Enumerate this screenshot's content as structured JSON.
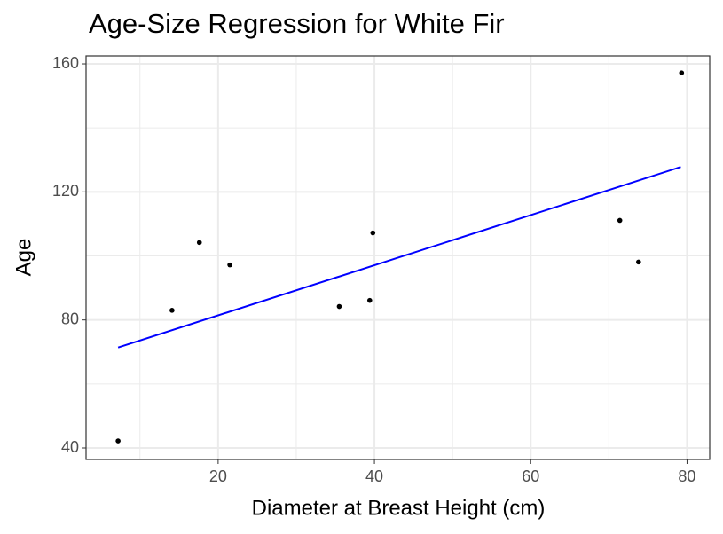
{
  "chart_data": {
    "type": "scatter",
    "title": "Age-Size Regression for White Fir",
    "x_label": "Diameter at Breast Height (cm)",
    "y_label": "Age",
    "xlim": [
      3.1,
      82.9
    ],
    "ylim": [
      36.4,
      162.5
    ],
    "xticks": [
      20,
      40,
      60,
      80
    ],
    "yticks": [
      40,
      80,
      120,
      160
    ],
    "minor_xticks": [
      10,
      30,
      50,
      70
    ],
    "minor_yticks": [
      60,
      100,
      140
    ],
    "grid": true,
    "points": {
      "color": "#000000",
      "x": [
        7.2,
        14.1,
        17.6,
        21.5,
        35.5,
        39.4,
        39.8,
        71.4,
        73.8,
        79.3
      ],
      "values": [
        42.2,
        83,
        104.2,
        97.2,
        84.2,
        86.1,
        107.2,
        111.1,
        98.1,
        157.2
      ]
    },
    "fit_line": {
      "color": "#0000ff",
      "x": [
        7.2,
        79.2
      ],
      "values": [
        71.4,
        127.8
      ]
    }
  }
}
